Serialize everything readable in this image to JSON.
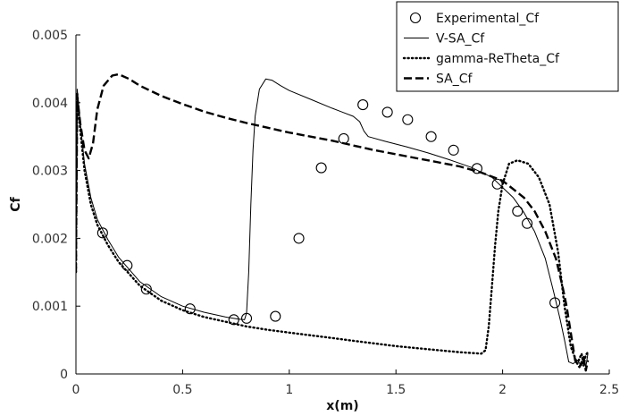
{
  "chart_data": {
    "type": "line",
    "title": "",
    "xlabel": "x(m)",
    "ylabel": "Cf",
    "xlim": [
      0,
      2.5
    ],
    "ylim": [
      0,
      0.005
    ],
    "grid": false,
    "legend_position": "top-right",
    "x_ticks": [
      {
        "value": 0,
        "label": "0"
      },
      {
        "value": 0.5,
        "label": "0.5"
      },
      {
        "value": 1,
        "label": "1"
      },
      {
        "value": 1.5,
        "label": "1.5"
      },
      {
        "value": 2,
        "label": "2"
      },
      {
        "value": 2.5,
        "label": "2.5"
      }
    ],
    "y_ticks": [
      {
        "value": 0,
        "label": "0"
      },
      {
        "value": 0.001,
        "label": "0.001"
      },
      {
        "value": 0.002,
        "label": "0.002"
      },
      {
        "value": 0.003,
        "label": "0.003"
      },
      {
        "value": 0.004,
        "label": "0.004"
      },
      {
        "value": 0.005,
        "label": "0.005"
      }
    ],
    "series": [
      {
        "name": "Experimental_Cf",
        "style": "markers",
        "color": "#000000",
        "points": [
          [
            0.125,
            0.00208
          ],
          [
            0.24,
            0.0016
          ],
          [
            0.33,
            0.00125
          ],
          [
            0.535,
            0.00096
          ],
          [
            0.74,
            0.0008
          ],
          [
            0.8,
            0.00082
          ],
          [
            0.935,
            0.00085
          ],
          [
            1.045,
            0.002
          ],
          [
            1.15,
            0.00304
          ],
          [
            1.255,
            0.00347
          ],
          [
            1.345,
            0.00397
          ],
          [
            1.46,
            0.00386
          ],
          [
            1.555,
            0.00375
          ],
          [
            1.665,
            0.0035
          ],
          [
            1.77,
            0.0033
          ],
          [
            1.88,
            0.00303
          ],
          [
            1.975,
            0.0028
          ],
          [
            2.07,
            0.0024
          ],
          [
            2.115,
            0.00222
          ],
          [
            2.245,
            0.00105
          ]
        ]
      },
      {
        "name": "V-SA_Cf",
        "style": "solid",
        "color": "#000000",
        "points": [
          [
            0.0,
            0.0015
          ],
          [
            0.006,
            0.0042
          ],
          [
            0.02,
            0.0037
          ],
          [
            0.04,
            0.0031
          ],
          [
            0.07,
            0.0026
          ],
          [
            0.1,
            0.00228
          ],
          [
            0.15,
            0.00198
          ],
          [
            0.2,
            0.00172
          ],
          [
            0.3,
            0.00136
          ],
          [
            0.4,
            0.00114
          ],
          [
            0.5,
            0.001
          ],
          [
            0.6,
            0.00091
          ],
          [
            0.7,
            0.00084
          ],
          [
            0.76,
            0.00081
          ],
          [
            0.79,
            0.0008
          ],
          [
            0.8,
            0.0009
          ],
          [
            0.81,
            0.0015
          ],
          [
            0.82,
            0.0025
          ],
          [
            0.83,
            0.0033
          ],
          [
            0.84,
            0.0038
          ],
          [
            0.86,
            0.0042
          ],
          [
            0.89,
            0.00435
          ],
          [
            0.92,
            0.00433
          ],
          [
            0.96,
            0.00425
          ],
          [
            1.0,
            0.00418
          ],
          [
            1.1,
            0.00405
          ],
          [
            1.2,
            0.00392
          ],
          [
            1.3,
            0.0038
          ],
          [
            1.33,
            0.00372
          ],
          [
            1.35,
            0.00358
          ],
          [
            1.37,
            0.0035
          ],
          [
            1.45,
            0.00343
          ],
          [
            1.55,
            0.00335
          ],
          [
            1.65,
            0.00326
          ],
          [
            1.75,
            0.00316
          ],
          [
            1.85,
            0.00305
          ],
          [
            1.95,
            0.0029
          ],
          [
            2.0,
            0.00275
          ],
          [
            2.05,
            0.0026
          ],
          [
            2.1,
            0.00238
          ],
          [
            2.15,
            0.0021
          ],
          [
            2.2,
            0.0017
          ],
          [
            2.24,
            0.0012
          ],
          [
            2.27,
            0.0008
          ],
          [
            2.29,
            0.0005
          ],
          [
            2.31,
            0.00018
          ],
          [
            2.33,
            0.00015
          ],
          [
            2.35,
            0.0002
          ],
          [
            2.37,
            0.00012
          ],
          [
            2.38,
            0.00025
          ],
          [
            2.39,
            0.0001
          ],
          [
            2.4,
            0.0003
          ]
        ]
      },
      {
        "name": "gamma-ReTheta_Cf",
        "style": "dotted",
        "color": "#000000",
        "points": [
          [
            0.0,
            0.0015
          ],
          [
            0.006,
            0.00415
          ],
          [
            0.02,
            0.0036
          ],
          [
            0.04,
            0.003
          ],
          [
            0.07,
            0.0025
          ],
          [
            0.1,
            0.0022
          ],
          [
            0.15,
            0.0019
          ],
          [
            0.2,
            0.00165
          ],
          [
            0.3,
            0.0013
          ],
          [
            0.4,
            0.00108
          ],
          [
            0.5,
            0.00094
          ],
          [
            0.6,
            0.00084
          ],
          [
            0.7,
            0.00077
          ],
          [
            0.8,
            0.0007
          ],
          [
            0.9,
            0.00065
          ],
          [
            1.0,
            0.00061
          ],
          [
            1.1,
            0.00057
          ],
          [
            1.2,
            0.00053
          ],
          [
            1.3,
            0.00049
          ],
          [
            1.4,
            0.00045
          ],
          [
            1.5,
            0.00041
          ],
          [
            1.6,
            0.00038
          ],
          [
            1.7,
            0.00035
          ],
          [
            1.8,
            0.00032
          ],
          [
            1.9,
            0.0003
          ],
          [
            1.92,
            0.00035
          ],
          [
            1.935,
            0.0007
          ],
          [
            1.95,
            0.0013
          ],
          [
            1.965,
            0.0019
          ],
          [
            1.98,
            0.0024
          ],
          [
            2.0,
            0.0028
          ],
          [
            2.03,
            0.0031
          ],
          [
            2.07,
            0.00315
          ],
          [
            2.12,
            0.0031
          ],
          [
            2.17,
            0.0029
          ],
          [
            2.22,
            0.0025
          ],
          [
            2.26,
            0.0018
          ],
          [
            2.29,
            0.001
          ],
          [
            2.32,
            0.0004
          ],
          [
            2.35,
            0.00015
          ],
          [
            2.37,
            0.0003
          ],
          [
            2.38,
            0.00012
          ],
          [
            2.39,
            0.00028
          ],
          [
            2.4,
            0.00032
          ]
        ]
      },
      {
        "name": "SA_Cf",
        "style": "dashed",
        "color": "#000000",
        "points": [
          [
            0.0,
            0.0015
          ],
          [
            0.006,
            0.0041
          ],
          [
            0.02,
            0.0037
          ],
          [
            0.04,
            0.0033
          ],
          [
            0.06,
            0.00318
          ],
          [
            0.08,
            0.0034
          ],
          [
            0.1,
            0.0039
          ],
          [
            0.13,
            0.00425
          ],
          [
            0.17,
            0.0044
          ],
          [
            0.2,
            0.00442
          ],
          [
            0.25,
            0.00435
          ],
          [
            0.3,
            0.00425
          ],
          [
            0.4,
            0.0041
          ],
          [
            0.5,
            0.00398
          ],
          [
            0.6,
            0.00387
          ],
          [
            0.7,
            0.00378
          ],
          [
            0.8,
            0.0037
          ],
          [
            0.9,
            0.00363
          ],
          [
            1.0,
            0.00356
          ],
          [
            1.1,
            0.0035
          ],
          [
            1.2,
            0.00344
          ],
          [
            1.3,
            0.00337
          ],
          [
            1.4,
            0.0033
          ],
          [
            1.5,
            0.00324
          ],
          [
            1.6,
            0.00318
          ],
          [
            1.7,
            0.00312
          ],
          [
            1.8,
            0.00306
          ],
          [
            1.9,
            0.00297
          ],
          [
            2.0,
            0.00285
          ],
          [
            2.1,
            0.0026
          ],
          [
            2.15,
            0.0024
          ],
          [
            2.2,
            0.0021
          ],
          [
            2.25,
            0.0017
          ],
          [
            2.28,
            0.0013
          ],
          [
            2.3,
            0.001
          ],
          [
            2.32,
            0.0006
          ],
          [
            2.34,
            0.0002
          ],
          [
            2.36,
            0.0001
          ],
          [
            2.38,
            0.00025
          ],
          [
            2.39,
            5e-05
          ],
          [
            2.4,
            0.0002
          ]
        ]
      }
    ]
  }
}
